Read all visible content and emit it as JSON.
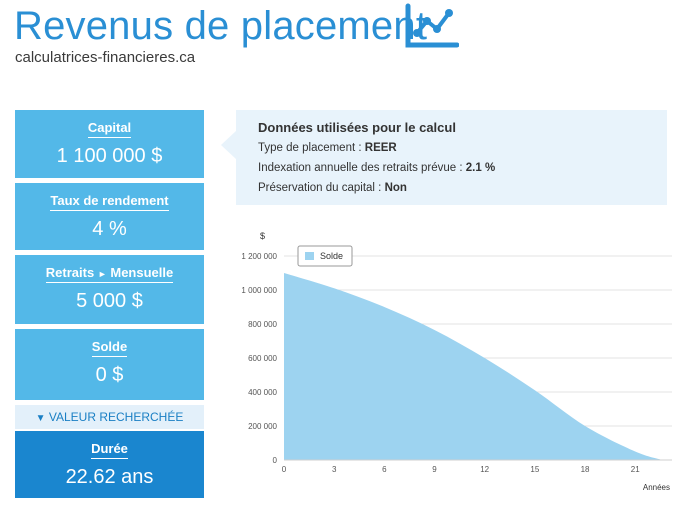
{
  "header": {
    "title": "Revenus de placement",
    "site": "calculatrices-financieres.ca",
    "icon": "line-chart-icon"
  },
  "cards": [
    {
      "label": "Capital",
      "value": "1 100 000 $"
    },
    {
      "label": "Taux de rendement",
      "value": "4 %"
    },
    {
      "label": "Retraits",
      "label_suffix": "Mensuelle",
      "value": "5 000 $"
    },
    {
      "label": "Solde",
      "value": "0 $"
    }
  ],
  "sought": {
    "label": "VALEUR RECHERCHÉE",
    "icon": "triangle-down-icon"
  },
  "result": {
    "label": "Durée",
    "value": "22.62 ans"
  },
  "info": {
    "title": "Données utilisées pour le calcul",
    "rows": [
      {
        "label": "Type de placement : ",
        "value": "REER"
      },
      {
        "label": "Indexation annuelle des retraits prévue : ",
        "value": "2.1 %"
      },
      {
        "label": "Préservation du capital : ",
        "value": "Non"
      }
    ]
  },
  "colors": {
    "accent": "#2a8fd4",
    "card": "#53b8e8",
    "card_dark": "#1a86cf",
    "area": "#9dd3f0"
  },
  "chart_data": {
    "type": "area",
    "ylabel": "$",
    "xlabel": "Années",
    "legend": "Solde",
    "ylim": [
      0,
      1200000
    ],
    "xlim": [
      0,
      23.2
    ],
    "yticks": [
      0,
      200000,
      400000,
      600000,
      800000,
      1000000,
      1200000
    ],
    "ytick_labels": [
      "0",
      "200 000",
      "400 000",
      "600 000",
      "800 000",
      "1 000 000",
      "1 200 000"
    ],
    "xticks": [
      0,
      3,
      6,
      9,
      12,
      15,
      18,
      21
    ],
    "x": [
      0,
      3,
      6,
      9,
      12,
      15,
      18,
      21,
      22.62
    ],
    "values": [
      1100000,
      1010000,
      900000,
      765000,
      600000,
      410000,
      200000,
      50000,
      0
    ]
  }
}
